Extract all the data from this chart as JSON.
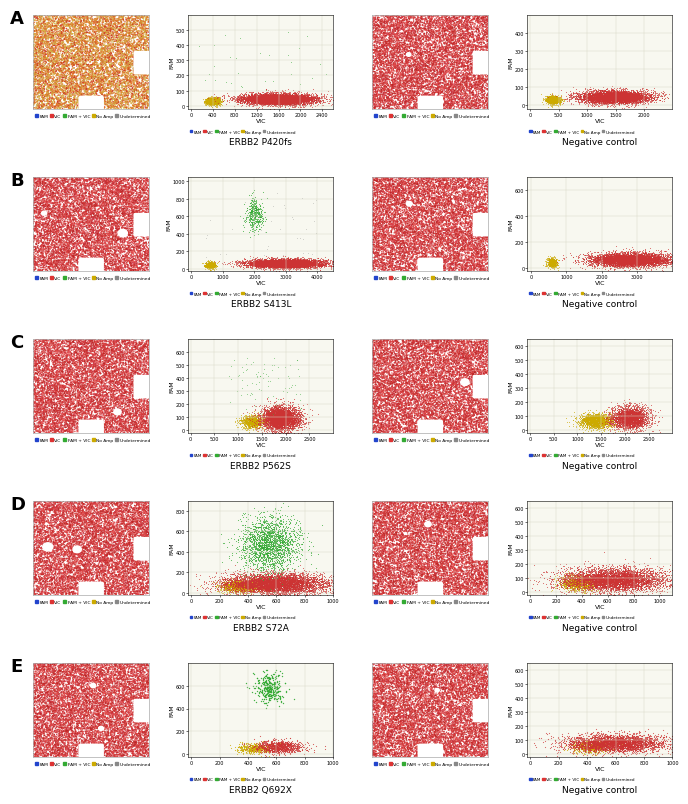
{
  "rows": [
    {
      "label": "A",
      "scatter_title": "ERBB2 P420fs",
      "raw1_type": "orange"
    },
    {
      "label": "B",
      "scatter_title": "ERBB2 S413L",
      "raw1_type": "red"
    },
    {
      "label": "C",
      "scatter_title": "ERBB2 P562S",
      "raw1_type": "red"
    },
    {
      "label": "D",
      "scatter_title": "ERBB2 S72A",
      "raw1_type": "red"
    },
    {
      "label": "E",
      "scatter_title": "ERBB2 Q692X",
      "raw1_type": "red"
    }
  ],
  "legend_labels": [
    "FAM",
    "VIC",
    "FAM + VIC",
    "No Amp",
    "Undetermined"
  ],
  "legend_colors": [
    "#2244cc",
    "#dd3333",
    "#33aa33",
    "#ccaa00",
    "#888888"
  ]
}
